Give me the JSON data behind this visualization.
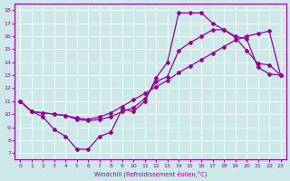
{
  "xlabel": "Windchill (Refroidissement éolien,°C)",
  "xlim": [
    0,
    23
  ],
  "ylim": [
    7,
    18
  ],
  "xticks": [
    0,
    1,
    2,
    3,
    4,
    5,
    6,
    7,
    8,
    9,
    10,
    11,
    12,
    13,
    14,
    15,
    16,
    17,
    18,
    19,
    20,
    21,
    22,
    23
  ],
  "yticks": [
    7,
    8,
    9,
    10,
    11,
    12,
    13,
    14,
    15,
    16,
    17,
    18
  ],
  "bg_color": "#cce8e8",
  "line_color": "#990099",
  "line1_x": [
    0,
    1,
    2,
    3,
    4,
    5,
    6,
    7,
    8,
    9,
    10,
    11,
    12,
    13,
    14,
    15,
    16,
    17,
    18,
    19,
    20,
    21,
    22,
    23
  ],
  "line1_y": [
    11.0,
    10.2,
    9.8,
    8.8,
    8.3,
    7.3,
    7.3,
    8.3,
    8.6,
    10.4,
    10.2,
    11.0,
    12.8,
    14.0,
    17.8,
    17.8,
    17.8,
    17.0,
    16.5,
    15.9,
    14.9,
    13.9,
    13.8,
    13.0
  ],
  "line2_x": [
    0,
    1,
    2,
    3,
    4,
    5,
    6,
    7,
    8,
    9,
    10,
    11,
    12,
    13,
    14,
    15,
    16,
    17,
    18,
    19,
    20,
    21,
    22,
    23
  ],
  "line2_y": [
    11.0,
    10.2,
    10.1,
    10.0,
    9.9,
    9.6,
    9.5,
    9.6,
    9.8,
    10.2,
    10.5,
    11.2,
    12.5,
    12.9,
    14.9,
    15.5,
    16.0,
    16.5,
    16.5,
    16.0,
    15.8,
    13.6,
    13.1,
    13.0
  ],
  "line3_x": [
    0,
    1,
    2,
    3,
    4,
    5,
    6,
    7,
    8,
    9,
    10,
    11,
    12,
    13,
    14,
    15,
    16,
    17,
    18,
    19,
    20,
    21,
    22,
    23
  ],
  "line3_y": [
    11.0,
    10.2,
    10.1,
    10.0,
    9.9,
    9.7,
    9.6,
    9.8,
    10.1,
    10.6,
    11.1,
    11.6,
    12.1,
    12.6,
    13.2,
    13.7,
    14.2,
    14.7,
    15.2,
    15.7,
    16.0,
    16.2,
    16.4,
    13.0
  ]
}
